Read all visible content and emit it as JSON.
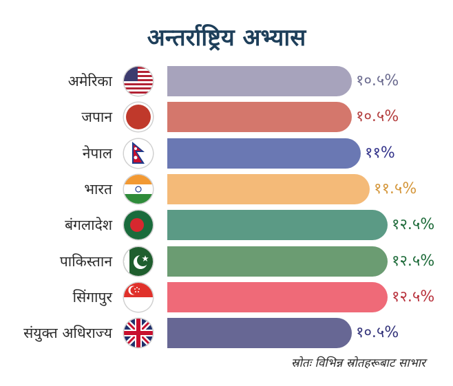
{
  "chart_data": {
    "type": "bar",
    "orientation": "horizontal",
    "title": "अन्तर्राष्ट्रिय अभ्यास",
    "categories": [
      "अमेरिका",
      "जपान",
      "नेपाल",
      "भारत",
      "बंगलादेश",
      "पाकिस्तान",
      "सिंगापुर",
      "संयुक्त अधिराज्य"
    ],
    "values": [
      10.5,
      10.5,
      11,
      11.5,
      12.5,
      12.5,
      12.5,
      10.5
    ],
    "value_labels": [
      "१०.५%",
      "१०.५%",
      "११%",
      "११.५%",
      "१२.५%",
      "१२.५%",
      "१२.५%",
      "१०.५%"
    ],
    "bar_colors": [
      "#a7a3bc",
      "#d4776c",
      "#6a78b3",
      "#f4ba78",
      "#5b9a85",
      "#6b9c72",
      "#ef6a78",
      "#676794"
    ],
    "label_colors": [
      "#6b6b8f",
      "#b33d3d",
      "#33338a",
      "#d4963a",
      "#1e6b3a",
      "#1e6b3a",
      "#b8323d",
      "#33337a"
    ],
    "flags": [
      "usa-flag-icon",
      "japan-flag-icon",
      "nepal-flag-icon",
      "india-flag-icon",
      "bangladesh-flag-icon",
      "pakistan-flag-icon",
      "singapore-flag-icon",
      "uk-flag-icon"
    ],
    "source": "स्रोतः विभिन्न स्रोतहरूबाट साभार",
    "grid": false,
    "legend": "none"
  }
}
